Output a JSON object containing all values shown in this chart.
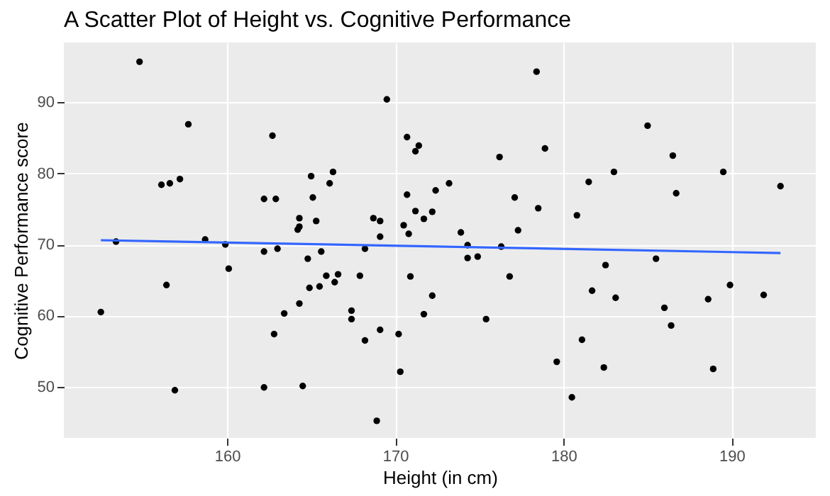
{
  "chart_data": {
    "type": "scatter",
    "title": "A Scatter Plot of Height vs. Cognitive Performance",
    "xlabel": "Height (in cm)",
    "ylabel": "Cognitive Performance score",
    "xlim": [
      150.3,
      195
    ],
    "ylim": [
      42.8,
      98.4
    ],
    "xticks": [
      160,
      170,
      180,
      190
    ],
    "yticks": [
      50,
      60,
      70,
      80,
      90
    ],
    "grid": true,
    "series": [
      {
        "marker": "circle",
        "color": "#000000",
        "x": [
          154.8,
          157.7,
          156.1,
          156.6,
          157.2,
          153.4,
          158.7,
          159.9,
          160.1,
          156.4,
          152.5,
          156.9,
          162.7,
          162.2,
          162.9,
          165.0,
          166.3,
          166.1,
          165.1,
          164.3,
          164.2,
          164.3,
          165.3,
          162.2,
          163.0,
          165.6,
          164.8,
          165.9,
          166.6,
          166.4,
          165.5,
          164.9,
          167.9,
          164.3,
          163.4,
          162.8,
          167.4,
          167.4,
          168.2,
          162.2,
          164.5,
          168.9,
          169.5,
          168.7,
          169.1,
          169.1,
          168.2,
          169.1,
          170.2,
          170.3,
          170.7,
          171.4,
          171.2,
          170.7,
          171.2,
          170.5,
          170.8,
          171.7,
          172.2,
          172.4,
          170.9,
          172.2,
          171.7,
          173.2,
          173.9,
          174.3,
          174.3,
          174.9,
          175.4,
          176.2,
          176.3,
          176.8,
          177.1,
          177.3,
          178.4,
          178.5,
          178.9,
          179.6,
          180.5,
          180.8,
          181.1,
          181.5,
          181.7,
          182.4,
          182.5,
          183.0,
          183.1,
          185.0,
          185.5,
          186.0,
          186.4,
          186.5,
          186.7,
          188.6,
          188.9,
          189.5,
          189.9,
          191.9,
          192.9
        ],
        "values": [
          95.7,
          86.9,
          78.4,
          78.6,
          79.2,
          70.4,
          70.7,
          70.0,
          66.6,
          64.3,
          60.5,
          49.5,
          85.3,
          76.4,
          76.4,
          79.6,
          80.2,
          78.6,
          76.6,
          73.7,
          72.1,
          72.5,
          73.3,
          69.0,
          69.4,
          69.0,
          68.0,
          65.6,
          65.8,
          64.7,
          64.1,
          63.9,
          65.6,
          61.7,
          60.3,
          57.4,
          60.7,
          59.5,
          56.5,
          49.9,
          50.1,
          45.2,
          90.4,
          73.7,
          73.3,
          71.1,
          69.4,
          58.0,
          57.4,
          52.1,
          85.1,
          83.9,
          83.1,
          77.0,
          74.7,
          72.7,
          71.5,
          73.6,
          74.6,
          77.6,
          65.5,
          62.8,
          60.2,
          78.6,
          71.7,
          69.9,
          68.1,
          68.3,
          59.5,
          82.3,
          69.7,
          65.5,
          76.6,
          72.0,
          94.3,
          75.1,
          83.5,
          53.5,
          48.5,
          74.1,
          56.6,
          78.8,
          63.5,
          52.7,
          67.1,
          80.2,
          62.5,
          86.7,
          68.0,
          61.1,
          58.6,
          82.5,
          77.2,
          62.3,
          52.5,
          80.2,
          64.3,
          62.9,
          78.2
        ]
      },
      {
        "type": "line",
        "line_style": "solid",
        "color": "#3366ff",
        "x": [
          152.5,
          192.9
        ],
        "values": [
          70.6,
          68.8
        ]
      }
    ]
  }
}
